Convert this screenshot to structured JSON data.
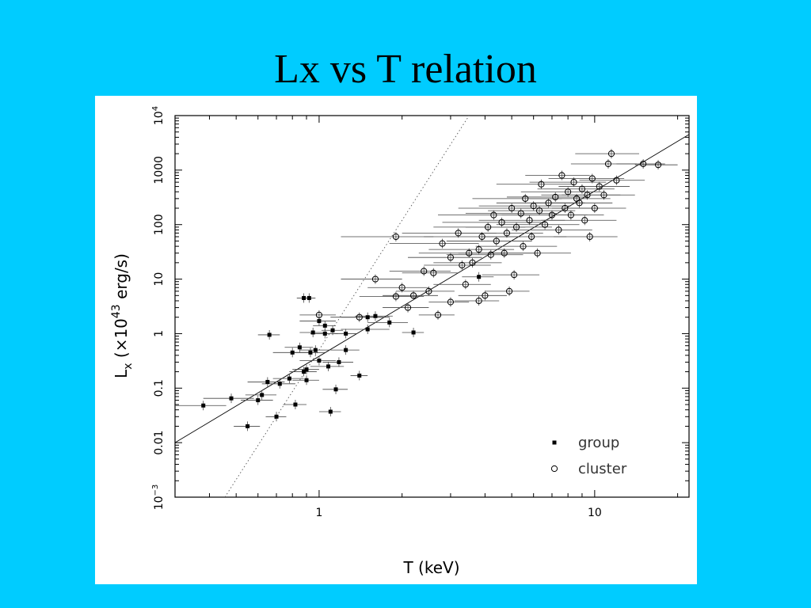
{
  "slide": {
    "title": "Lx vs T relation",
    "background": "#00ccff"
  },
  "chart_data": {
    "type": "scatter",
    "title": "",
    "xlabel": "T (keV)",
    "ylabel": "L_x (×10^43 erg/s)",
    "x_scale": "log",
    "y_scale": "log",
    "xlim": [
      0.3,
      22
    ],
    "ylim": [
      0.001,
      10000
    ],
    "x_ticks": [
      {
        "value": 1,
        "label": "1"
      },
      {
        "value": 10,
        "label": "10"
      }
    ],
    "y_ticks": [
      {
        "value": 0.001,
        "label": "10",
        "sup": "−3"
      },
      {
        "value": 0.01,
        "label": "0.01",
        "sup": ""
      },
      {
        "value": 0.1,
        "label": "0.1",
        "sup": ""
      },
      {
        "value": 1,
        "label": "1",
        "sup": ""
      },
      {
        "value": 10,
        "label": "10",
        "sup": ""
      },
      {
        "value": 100,
        "label": "100",
        "sup": ""
      },
      {
        "value": 1000,
        "label": "1000",
        "sup": ""
      },
      {
        "value": 10000,
        "label": "10",
        "sup": "4"
      }
    ],
    "grid": false,
    "legend_position": "bottom-right",
    "series": [
      {
        "name": "group",
        "marker": "filled-square",
        "points": [
          {
            "x": 0.38,
            "y": 0.048,
            "xerr": 0.08
          },
          {
            "x": 0.48,
            "y": 0.065,
            "xerr": 0.1
          },
          {
            "x": 0.55,
            "y": 0.02,
            "xerr": 0.06
          },
          {
            "x": 0.6,
            "y": 0.06,
            "xerr": 0.08
          },
          {
            "x": 0.62,
            "y": 0.075,
            "xerr": 0.08
          },
          {
            "x": 0.65,
            "y": 0.13,
            "xerr": 0.1
          },
          {
            "x": 0.66,
            "y": 0.95,
            "xerr": 0.06
          },
          {
            "x": 0.7,
            "y": 0.03,
            "xerr": 0.06
          },
          {
            "x": 0.72,
            "y": 0.12,
            "xerr": 0.1
          },
          {
            "x": 0.78,
            "y": 0.15,
            "xerr": 0.1
          },
          {
            "x": 0.8,
            "y": 0.45,
            "xerr": 0.12
          },
          {
            "x": 0.82,
            "y": 0.05,
            "xerr": 0.08
          },
          {
            "x": 0.85,
            "y": 0.56,
            "xerr": 0.1
          },
          {
            "x": 0.88,
            "y": 0.2,
            "xerr": 0.1
          },
          {
            "x": 0.88,
            "y": 4.5,
            "xerr": 0.05
          },
          {
            "x": 0.92,
            "y": 4.5,
            "xerr": 0.05
          },
          {
            "x": 0.9,
            "y": 0.14,
            "xerr": 0.1
          },
          {
            "x": 0.9,
            "y": 0.22,
            "xerr": 0.1
          },
          {
            "x": 0.93,
            "y": 0.45,
            "xerr": 0.12
          },
          {
            "x": 0.95,
            "y": 1.05,
            "xerr": 0.1
          },
          {
            "x": 0.97,
            "y": 0.5,
            "xerr": 0.12
          },
          {
            "x": 1.0,
            "y": 0.32,
            "xerr": 0.15
          },
          {
            "x": 1.0,
            "y": 1.7,
            "xerr": 0.15
          },
          {
            "x": 1.05,
            "y": 1.4,
            "xerr": 0.1
          },
          {
            "x": 1.05,
            "y": 1.0,
            "xerr": 0.12
          },
          {
            "x": 1.08,
            "y": 0.25,
            "xerr": 0.15
          },
          {
            "x": 1.1,
            "y": 0.037,
            "xerr": 0.1
          },
          {
            "x": 1.12,
            "y": 1.15,
            "xerr": 0.1
          },
          {
            "x": 1.15,
            "y": 0.095,
            "xerr": 0.12
          },
          {
            "x": 1.18,
            "y": 0.3,
            "xerr": 0.15
          },
          {
            "x": 1.25,
            "y": 1.0,
            "xerr": 0.12
          },
          {
            "x": 1.25,
            "y": 0.5,
            "xerr": 0.15
          },
          {
            "x": 1.4,
            "y": 0.17,
            "xerr": 0.1
          },
          {
            "x": 1.5,
            "y": 1.2,
            "xerr": 0.3
          },
          {
            "x": 1.5,
            "y": 2.0,
            "xerr": 0.3
          },
          {
            "x": 1.6,
            "y": 2.1,
            "xerr": 0.25
          },
          {
            "x": 1.8,
            "y": 1.6,
            "xerr": 0.3
          },
          {
            "x": 2.2,
            "y": 1.05,
            "xerr": 0.2
          },
          {
            "x": 3.8,
            "y": 11,
            "xerr": 0.5
          }
        ]
      },
      {
        "name": "cluster",
        "marker": "open-circle",
        "points": [
          {
            "x": 1.0,
            "y": 2.2,
            "xerr": 0.15
          },
          {
            "x": 1.4,
            "y": 2.0,
            "xerr": 0.3
          },
          {
            "x": 1.6,
            "y": 10,
            "xerr": 0.4
          },
          {
            "x": 1.9,
            "y": 60,
            "xerr": 0.7
          },
          {
            "x": 1.9,
            "y": 4.8,
            "xerr": 0.5
          },
          {
            "x": 2.0,
            "y": 7,
            "xerr": 0.5
          },
          {
            "x": 2.1,
            "y": 3.0,
            "xerr": 0.4
          },
          {
            "x": 2.2,
            "y": 5,
            "xerr": 0.5
          },
          {
            "x": 2.4,
            "y": 14,
            "xerr": 0.6
          },
          {
            "x": 2.5,
            "y": 6,
            "xerr": 0.6
          },
          {
            "x": 2.6,
            "y": 13,
            "xerr": 0.6
          },
          {
            "x": 2.7,
            "y": 2.2,
            "xerr": 0.4
          },
          {
            "x": 2.8,
            "y": 45,
            "xerr": 1.0
          },
          {
            "x": 3.0,
            "y": 3.8,
            "xerr": 0.5
          },
          {
            "x": 3.0,
            "y": 25,
            "xerr": 0.9
          },
          {
            "x": 3.2,
            "y": 70,
            "xerr": 1.2
          },
          {
            "x": 3.3,
            "y": 18,
            "xerr": 0.9
          },
          {
            "x": 3.4,
            "y": 8,
            "xerr": 0.8
          },
          {
            "x": 3.5,
            "y": 30,
            "xerr": 1.2
          },
          {
            "x": 3.6,
            "y": 20,
            "xerr": 1.0
          },
          {
            "x": 3.8,
            "y": 35,
            "xerr": 1.3
          },
          {
            "x": 3.8,
            "y": 4,
            "xerr": 0.7
          },
          {
            "x": 3.9,
            "y": 60,
            "xerr": 1.5
          },
          {
            "x": 4.0,
            "y": 5,
            "xerr": 0.8
          },
          {
            "x": 4.1,
            "y": 90,
            "xerr": 1.5
          },
          {
            "x": 4.2,
            "y": 28,
            "xerr": 1.3
          },
          {
            "x": 4.3,
            "y": 150,
            "xerr": 1.6
          },
          {
            "x": 4.4,
            "y": 50,
            "xerr": 1.5
          },
          {
            "x": 4.6,
            "y": 110,
            "xerr": 1.8
          },
          {
            "x": 4.7,
            "y": 30,
            "xerr": 1.5
          },
          {
            "x": 4.8,
            "y": 70,
            "xerr": 1.7
          },
          {
            "x": 4.9,
            "y": 6,
            "xerr": 0.9
          },
          {
            "x": 5.0,
            "y": 200,
            "xerr": 1.8
          },
          {
            "x": 5.1,
            "y": 12,
            "xerr": 1.2
          },
          {
            "x": 5.2,
            "y": 90,
            "xerr": 1.8
          },
          {
            "x": 5.4,
            "y": 160,
            "xerr": 2.0
          },
          {
            "x": 5.5,
            "y": 40,
            "xerr": 1.8
          },
          {
            "x": 5.6,
            "y": 300,
            "xerr": 2.0
          },
          {
            "x": 5.8,
            "y": 120,
            "xerr": 2.0
          },
          {
            "x": 5.9,
            "y": 60,
            "xerr": 2.0
          },
          {
            "x": 6.0,
            "y": 220,
            "xerr": 2.2
          },
          {
            "x": 6.2,
            "y": 30,
            "xerr": 2.0
          },
          {
            "x": 6.3,
            "y": 180,
            "xerr": 2.2
          },
          {
            "x": 6.4,
            "y": 550,
            "xerr": 2.0
          },
          {
            "x": 6.6,
            "y": 100,
            "xerr": 2.2
          },
          {
            "x": 6.8,
            "y": 250,
            "xerr": 2.4
          },
          {
            "x": 7.0,
            "y": 150,
            "xerr": 2.4
          },
          {
            "x": 7.2,
            "y": 320,
            "xerr": 2.4
          },
          {
            "x": 7.4,
            "y": 80,
            "xerr": 2.4
          },
          {
            "x": 7.6,
            "y": 800,
            "xerr": 2.0
          },
          {
            "x": 7.8,
            "y": 200,
            "xerr": 2.6
          },
          {
            "x": 8.0,
            "y": 400,
            "xerr": 2.6
          },
          {
            "x": 8.2,
            "y": 150,
            "xerr": 2.6
          },
          {
            "x": 8.4,
            "y": 600,
            "xerr": 2.6
          },
          {
            "x": 8.6,
            "y": 300,
            "xerr": 2.8
          },
          {
            "x": 8.8,
            "y": 250,
            "xerr": 2.8
          },
          {
            "x": 9.0,
            "y": 450,
            "xerr": 2.8
          },
          {
            "x": 9.2,
            "y": 120,
            "xerr": 2.8
          },
          {
            "x": 9.4,
            "y": 350,
            "xerr": 3.0
          },
          {
            "x": 9.6,
            "y": 60,
            "xerr": 2.5
          },
          {
            "x": 9.8,
            "y": 700,
            "xerr": 3.0
          },
          {
            "x": 10.0,
            "y": 200,
            "xerr": 3.0
          },
          {
            "x": 10.4,
            "y": 500,
            "xerr": 3.0
          },
          {
            "x": 10.8,
            "y": 350,
            "xerr": 3.2
          },
          {
            "x": 11.2,
            "y": 1300,
            "xerr": 3.0
          },
          {
            "x": 11.5,
            "y": 2000,
            "xerr": 3.0
          },
          {
            "x": 12.0,
            "y": 650,
            "xerr": 3.2
          },
          {
            "x": 15.0,
            "y": 1300,
            "xerr": 3.0
          },
          {
            "x": 17.0,
            "y": 1250,
            "xerr": 3.0
          }
        ]
      }
    ],
    "fit_lines": [
      {
        "style": "solid",
        "from": {
          "x": 0.3,
          "y": 0.01
        },
        "to": {
          "x": 22,
          "y": 4500
        }
      },
      {
        "style": "dotted",
        "from": {
          "x": 0.455,
          "y": 0.001
        },
        "to": {
          "x": 3.5,
          "y": 10000
        }
      }
    ],
    "colors": {
      "axes": "#000000",
      "markers": "#000000",
      "error_bars": "#444444"
    }
  }
}
